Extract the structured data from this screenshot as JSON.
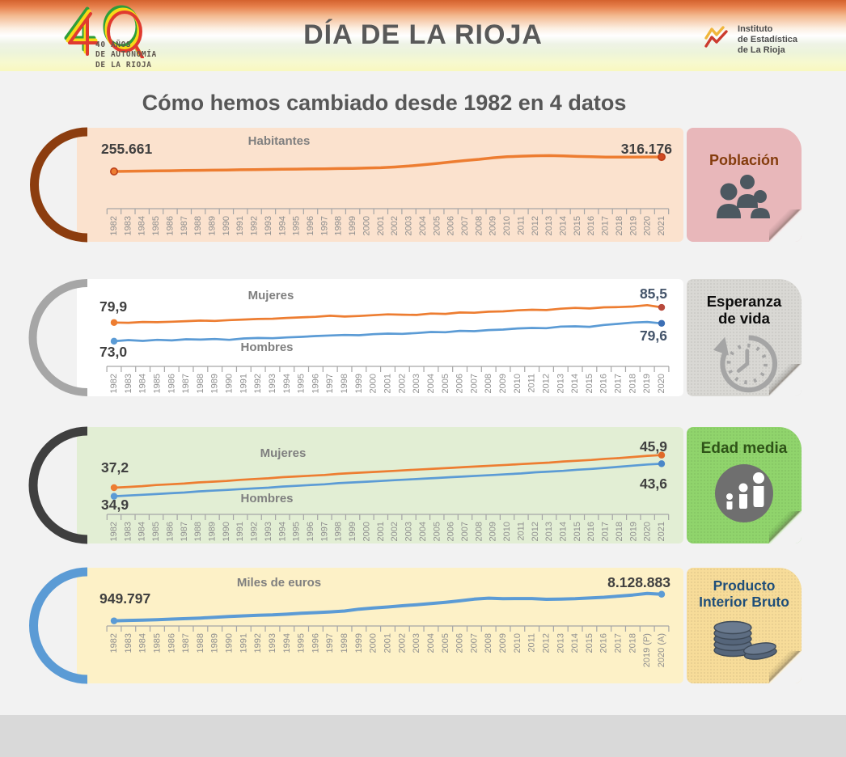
{
  "header": {
    "logo40": {
      "number": "40",
      "caption_lines": [
        "40 AÑOS",
        "DE AUTONOMÍA",
        "DE LA RIOJA"
      ]
    },
    "title": "DÍA DE LA RIOJA",
    "org_logo_lines": [
      "Instituto",
      "de Estadística",
      "de La Rioja"
    ]
  },
  "main_title": "Cómo hemos cambiado desde 1982 en 4 datos",
  "panels": [
    {
      "id": "poblacion",
      "card_title": "Población",
      "icon": "people-icon",
      "series_label": "Habitantes",
      "start_value": "255.661",
      "end_value": "316.176",
      "colors": {
        "panel_bg": "#fbe2ce",
        "arc": "#8c3d0f",
        "card_bg": "#e8b7ba",
        "card_text": "#843c0c",
        "line": "#ed7d31"
      }
    },
    {
      "id": "esperanza-de-vida",
      "card_title": "Esperanza de vida",
      "icon": "clock-history-icon",
      "label_top": "Mujeres",
      "label_bottom": "Hombres",
      "start_value_top": "79,9",
      "start_value_bottom": "73,0",
      "end_value_top": "85,5",
      "end_value_bottom": "79,6",
      "colors": {
        "panel_bg": "#ffffff",
        "arc": "#a6a6a6",
        "card_bg": "#d9d8d4",
        "card_text": "#0d0d0d",
        "line_women": "#ed7d31",
        "line_men": "#5b9bd5"
      }
    },
    {
      "id": "edad-media",
      "card_title": "Edad media",
      "icon": "growing-people-icon",
      "label_top": "Mujeres",
      "label_bottom": "Hombres",
      "start_value_top": "37,2",
      "start_value_bottom": "34,9",
      "end_value_top": "45,9",
      "end_value_bottom": "43,6",
      "colors": {
        "panel_bg": "#e2eed4",
        "arc": "#3f3f3f",
        "card_bg": "#90d46c",
        "card_text": "#2f5418",
        "line_women": "#ed7d31",
        "line_men": "#5b9bd5"
      }
    },
    {
      "id": "producto-interior-bruto",
      "card_title": "Producto Interior Bruto",
      "icon": "coins-icon",
      "series_label": "Miles de euros",
      "start_value": "949.797",
      "end_value": "8.128.883",
      "colors": {
        "panel_bg": "#fdf1c7",
        "arc": "#5b9bd5",
        "card_bg": "#f7dc99",
        "card_text": "#1f4e79",
        "line": "#5b9bd5"
      }
    }
  ],
  "chart_data": [
    {
      "type": "line",
      "title": "Habitantes",
      "x_labels": [
        "1982",
        "1983",
        "1984",
        "1985",
        "1986",
        "1987",
        "1988",
        "1989",
        "1990",
        "1991",
        "1992",
        "1993",
        "1994",
        "1995",
        "1996",
        "1997",
        "1998",
        "1999",
        "2000",
        "2001",
        "2002",
        "2003",
        "2004",
        "2005",
        "2006",
        "2007",
        "2008",
        "2009",
        "2010",
        "2011",
        "2012",
        "2013",
        "2014",
        "2015",
        "2016",
        "2017",
        "2018",
        "2019",
        "2020",
        "2021"
      ],
      "ylim": [
        100000,
        330000
      ],
      "series": [
        {
          "name": "Habitantes",
          "color": "#ed7d31",
          "dot_color": "#ed7d31",
          "dot_stroke": "#bb3f18",
          "end_dot_color": "#d14a23",
          "values": [
            255661,
            256400,
            257200,
            258000,
            258800,
            259500,
            260300,
            261000,
            261800,
            262600,
            263300,
            264000,
            264700,
            265500,
            266200,
            266900,
            267700,
            268500,
            269800,
            271200,
            274200,
            278300,
            283800,
            289200,
            295000,
            301100,
            306400,
            312800,
            317100,
            319600,
            321200,
            321900,
            320900,
            318600,
            317000,
            315800,
            315400,
            315700,
            316000,
            316176
          ]
        }
      ]
    },
    {
      "type": "line",
      "title": "Esperanza de vida",
      "x_labels": [
        "1982",
        "1983",
        "1984",
        "1985",
        "1986",
        "1987",
        "1988",
        "1989",
        "1990",
        "1991",
        "1992",
        "1993",
        "1994",
        "1995",
        "1996",
        "1997",
        "1998",
        "1999",
        "2000",
        "2001",
        "2002",
        "2003",
        "2004",
        "2005",
        "2006",
        "2007",
        "2008",
        "2009",
        "2010",
        "2011",
        "2012",
        "2013",
        "2014",
        "2015",
        "2016",
        "2017",
        "2018",
        "2019",
        "2020"
      ],
      "ylim": [
        64,
        87
      ],
      "series": [
        {
          "name": "Mujeres",
          "color": "#ed7d31",
          "dot_color": "#ed7d31",
          "dot_stroke": null,
          "end_dot_color": "#b84a3c",
          "values": [
            79.9,
            79.8,
            80.1,
            80.0,
            80.2,
            80.4,
            80.6,
            80.5,
            80.8,
            81.0,
            81.2,
            81.3,
            81.6,
            81.8,
            82.0,
            82.4,
            82.1,
            82.3,
            82.6,
            82.9,
            82.8,
            82.7,
            83.2,
            83.1,
            83.6,
            83.5,
            83.9,
            84.0,
            84.4,
            84.6,
            84.5,
            85.0,
            85.3,
            85.1,
            85.5,
            85.6,
            85.8,
            86.3,
            85.5
          ]
        },
        {
          "name": "Hombres",
          "color": "#5b9bd5",
          "dot_color": "#5b9bd5",
          "dot_stroke": null,
          "end_dot_color": "#3c6fb5",
          "values": [
            73.0,
            73.4,
            73.1,
            73.5,
            73.3,
            73.7,
            73.6,
            73.8,
            73.5,
            74.0,
            74.2,
            74.1,
            74.4,
            74.6,
            74.9,
            75.1,
            75.3,
            75.2,
            75.6,
            75.8,
            75.7,
            76.0,
            76.4,
            76.3,
            76.8,
            76.7,
            77.1,
            77.3,
            77.7,
            77.9,
            77.8,
            78.4,
            78.5,
            78.3,
            79.0,
            79.4,
            79.9,
            80.1,
            79.6
          ]
        }
      ]
    },
    {
      "type": "line",
      "title": "Edad media",
      "x_labels": [
        "1982",
        "1983",
        "1984",
        "1985",
        "1986",
        "1987",
        "1988",
        "1989",
        "1990",
        "1991",
        "1992",
        "1993",
        "1994",
        "1995",
        "1996",
        "1997",
        "1998",
        "1999",
        "2000",
        "2001",
        "2002",
        "2003",
        "2004",
        "2005",
        "2006",
        "2007",
        "2008",
        "2009",
        "2010",
        "2011",
        "2012",
        "2013",
        "2014",
        "2015",
        "2016",
        "2017",
        "2018",
        "2019",
        "2020",
        "2021"
      ],
      "ylim": [
        30.5,
        48
      ],
      "series": [
        {
          "name": "Mujeres",
          "color": "#ed7d31",
          "dot_color": "#ed7d31",
          "dot_stroke": null,
          "end_dot_color": "#e06a28",
          "values": [
            37.2,
            37.4,
            37.6,
            37.9,
            38.1,
            38.3,
            38.6,
            38.8,
            39.0,
            39.3,
            39.5,
            39.7,
            40.0,
            40.2,
            40.4,
            40.6,
            40.9,
            41.1,
            41.3,
            41.5,
            41.7,
            41.9,
            42.1,
            42.3,
            42.5,
            42.7,
            42.9,
            43.1,
            43.3,
            43.5,
            43.7,
            43.9,
            44.2,
            44.4,
            44.6,
            44.9,
            45.1,
            45.4,
            45.7,
            45.9
          ]
        },
        {
          "name": "Hombres",
          "color": "#5b9bd5",
          "dot_color": "#5b9bd5",
          "dot_stroke": null,
          "end_dot_color": "#4a86c8",
          "values": [
            34.9,
            35.1,
            35.3,
            35.5,
            35.7,
            35.9,
            36.2,
            36.4,
            36.6,
            36.8,
            37.0,
            37.2,
            37.5,
            37.7,
            37.9,
            38.1,
            38.4,
            38.6,
            38.8,
            39.0,
            39.2,
            39.4,
            39.6,
            39.8,
            40.0,
            40.2,
            40.4,
            40.6,
            40.8,
            41.0,
            41.3,
            41.5,
            41.7,
            42.0,
            42.2,
            42.5,
            42.8,
            43.1,
            43.4,
            43.6
          ]
        }
      ]
    },
    {
      "type": "line",
      "title": "Miles de euros",
      "x_labels": [
        "1982",
        "1983",
        "1984",
        "1985",
        "1986",
        "1987",
        "1988",
        "1989",
        "1990",
        "1991",
        "1992",
        "1993",
        "1994",
        "1995",
        "1996",
        "1997",
        "1998",
        "1999",
        "2000",
        "2001",
        "2002",
        "2003",
        "2004",
        "2005",
        "2006",
        "2007",
        "2008",
        "2009",
        "2010",
        "2011",
        "2012",
        "2013",
        "2014",
        "2015",
        "2016",
        "2017",
        "2018",
        "2019 (P)",
        "2020 (A)"
      ],
      "ylim": [
        0,
        9600000
      ],
      "series": [
        {
          "name": "Producto Interior Bruto",
          "color": "#5b9bd5",
          "dot_color": "#5b9bd5",
          "dot_stroke": null,
          "end_dot_color": "#5b9bd5",
          "values": [
            949797,
            1060000,
            1160000,
            1270000,
            1410000,
            1560000,
            1710000,
            1910000,
            2110000,
            2300000,
            2450000,
            2560000,
            2760000,
            3000000,
            3160000,
            3360000,
            3610000,
            4100000,
            4400000,
            4700000,
            5010000,
            5310000,
            5610000,
            5960000,
            6360000,
            6810000,
            7060000,
            6910000,
            6960000,
            6960000,
            6760000,
            6810000,
            6910000,
            7110000,
            7310000,
            7610000,
            7910000,
            8360000,
            8128883
          ]
        }
      ]
    }
  ],
  "axis": {
    "color": "#a6a6a6",
    "label_color": "#8f8f8f"
  }
}
